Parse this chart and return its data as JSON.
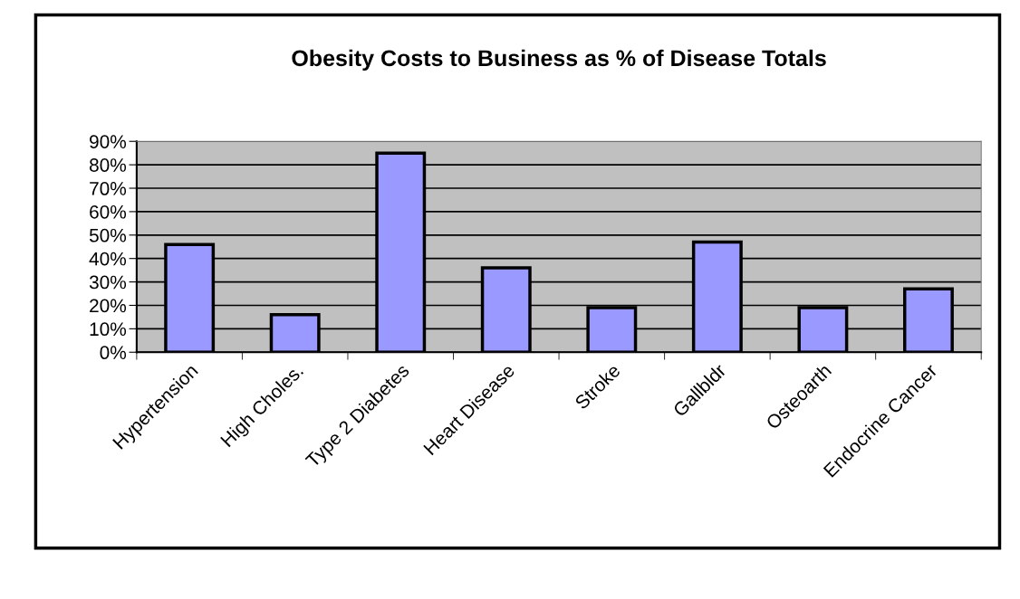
{
  "chart_data": {
    "type": "bar",
    "title": "Obesity Costs to Business as % of Disease Totals",
    "categories": [
      "Hypertension",
      "High Choles.",
      "Type 2 Diabetes",
      "Heart Disease",
      "Stroke",
      "Gallbldr",
      "Osteoarth",
      "Endocrine Cancer"
    ],
    "values": [
      46,
      16,
      85,
      36,
      19,
      47,
      19,
      27
    ],
    "color": "#9999ff",
    "ylim": [
      0,
      90
    ],
    "yticks": [
      {
        "value": 0,
        "label": "0%"
      },
      {
        "value": 10,
        "label": "10%"
      },
      {
        "value": 20,
        "label": "20%"
      },
      {
        "value": 30,
        "label": "30%"
      },
      {
        "value": 40,
        "label": "40%"
      },
      {
        "value": 50,
        "label": "50%"
      },
      {
        "value": 60,
        "label": "60%"
      },
      {
        "value": 70,
        "label": "70%"
      },
      {
        "value": 80,
        "label": "80%"
      },
      {
        "value": 90,
        "label": "90%"
      }
    ],
    "grid": "y",
    "legend": false
  }
}
